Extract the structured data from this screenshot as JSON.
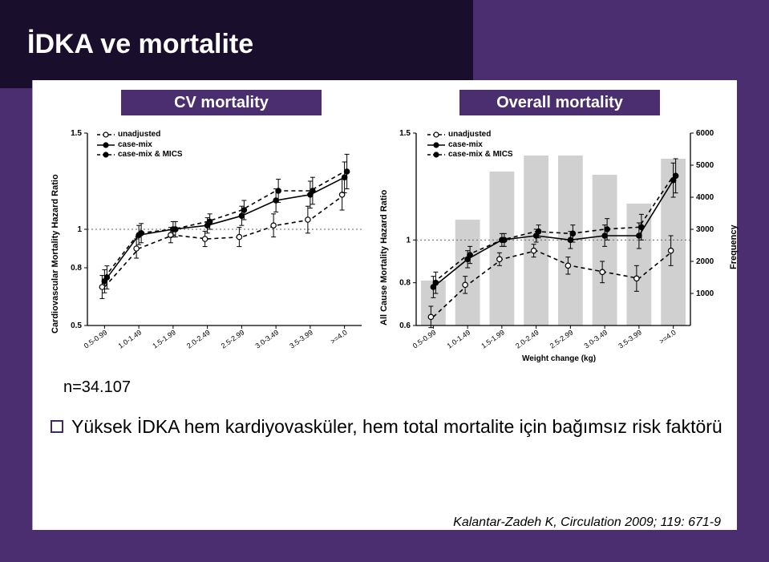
{
  "title": "İDKA ve mortalite",
  "subtitles": {
    "left": "CV mortality",
    "right": "Overall mortality"
  },
  "n_label": "n=34.107",
  "bullet": "Yüksek İDKA hem kardiyovasküler, hem total mortalite için bağımsız risk faktörü",
  "citation": "Kalantar-Zadeh K, Circulation 2009; 119: 671-9",
  "colors": {
    "header_bg": "#1a0e2d",
    "slide_bg": "#4b2e6f",
    "bar_fill": "#d0d0d0",
    "grid": "#888888",
    "dot": "#000000",
    "dash": "#000000"
  },
  "legend": {
    "items": [
      {
        "label": "unadjusted",
        "style": "open-dash"
      },
      {
        "label": "case-mix",
        "style": "closed-solid"
      },
      {
        "label": "case-mix & MICS",
        "style": "closed-dash"
      }
    ]
  },
  "categories": [
    "0.5-0.99",
    "1.0-1.49",
    "1.5-1.99",
    "2.0-2.49",
    "2.5-2.99",
    "3.0-3.49",
    "3.5-3.99",
    ">=4.0"
  ],
  "left_chart": {
    "y_axis_label": "Cardiovascular Mortality Hazard Ratio",
    "ylim": [
      0.5,
      1.5
    ],
    "yticks": [
      0.5,
      0.8,
      1.0,
      1.5
    ],
    "series_unadj": [
      0.7,
      0.9,
      0.97,
      0.95,
      0.96,
      1.02,
      1.05,
      1.18
    ],
    "series_case": [
      0.73,
      0.97,
      1.0,
      1.02,
      1.07,
      1.15,
      1.18,
      1.27
    ],
    "series_mics": [
      0.75,
      0.98,
      1.0,
      1.04,
      1.1,
      1.2,
      1.2,
      1.3
    ],
    "err_unadj": [
      0.06,
      0.05,
      0.04,
      0.04,
      0.05,
      0.06,
      0.07,
      0.08
    ],
    "err_case": [
      0.06,
      0.05,
      0.04,
      0.04,
      0.05,
      0.06,
      0.07,
      0.08
    ],
    "err_mics": [
      0.06,
      0.05,
      0.04,
      0.04,
      0.05,
      0.06,
      0.07,
      0.09
    ],
    "label_fontsize": 11
  },
  "right_chart": {
    "y_axis_label_left": "All Cause Mortality Hazard Ratio",
    "y_axis_label_right": "Frequency",
    "x_axis_label": "Weight change (kg)",
    "ylim_left": [
      0.6,
      1.5
    ],
    "yticks_left": [
      0.6,
      0.8,
      1.0,
      1.5
    ],
    "ylim_right": [
      0,
      6000
    ],
    "yticks_right": [
      1000,
      2000,
      3000,
      4000,
      5000,
      6000
    ],
    "freq_bars": [
      1400,
      3300,
      4800,
      5300,
      5300,
      4700,
      3800,
      5200
    ],
    "series_unadj": [
      0.64,
      0.79,
      0.91,
      0.95,
      0.88,
      0.85,
      0.82,
      0.95
    ],
    "series_case": [
      0.78,
      0.91,
      1.0,
      1.02,
      1.0,
      1.02,
      1.02,
      1.28
    ],
    "series_mics": [
      0.8,
      0.93,
      1.0,
      1.04,
      1.03,
      1.05,
      1.06,
      1.3
    ],
    "err_unadj": [
      0.05,
      0.04,
      0.03,
      0.03,
      0.04,
      0.05,
      0.06,
      0.07
    ],
    "err_case": [
      0.05,
      0.04,
      0.03,
      0.03,
      0.04,
      0.05,
      0.06,
      0.08
    ],
    "err_mics": [
      0.05,
      0.04,
      0.03,
      0.03,
      0.04,
      0.05,
      0.06,
      0.08
    ],
    "label_fontsize": 11
  }
}
